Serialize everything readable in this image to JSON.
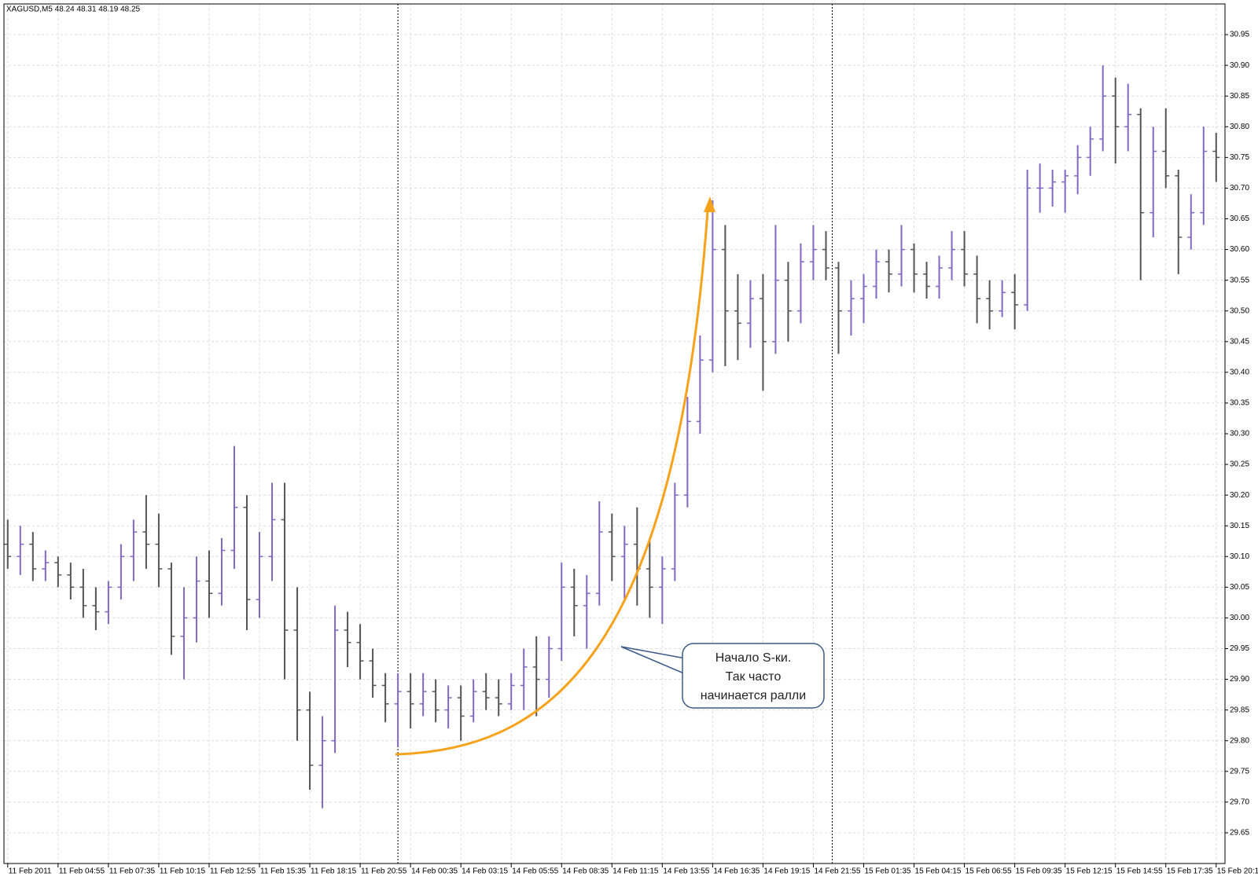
{
  "chart_data": {
    "type": "ohlc",
    "title": "XAGUSD,M5  48.24 48.31 48.19 48.25",
    "annotation": [
      "Начало S-ки.",
      "Так часто",
      "начинается ралли"
    ],
    "up_color": "#8466c4",
    "down_color": "#555555",
    "grid": true,
    "period_separators": [
      31,
      65.5
    ],
    "xlim": [
      -0.3,
      96.7
    ],
    "xticks": [
      {
        "value": 0,
        "label": "11 Feb 2011"
      },
      {
        "value": 4,
        "label": "11 Feb 04:55"
      },
      {
        "value": 8,
        "label": "11 Feb 07:35"
      },
      {
        "value": 12,
        "label": "11 Feb 10:15"
      },
      {
        "value": 16,
        "label": "11 Feb 12:55"
      },
      {
        "value": 20,
        "label": "11 Feb 15:35"
      },
      {
        "value": 24,
        "label": "11 Feb 18:15"
      },
      {
        "value": 28,
        "label": "11 Feb 20:55"
      },
      {
        "value": 32,
        "label": "14 Feb 00:35"
      },
      {
        "value": 36,
        "label": "14 Feb 03:15"
      },
      {
        "value": 40,
        "label": "14 Feb 05:55"
      },
      {
        "value": 44,
        "label": "14 Feb 08:35"
      },
      {
        "value": 48,
        "label": "14 Feb 11:15"
      },
      {
        "value": 52,
        "label": "14 Feb 13:55"
      },
      {
        "value": 56,
        "label": "14 Feb 16:35"
      },
      {
        "value": 60,
        "label": "14 Feb 19:15"
      },
      {
        "value": 64,
        "label": "14 Feb 21:55"
      },
      {
        "value": 68,
        "label": "15 Feb 01:35"
      },
      {
        "value": 72,
        "label": "15 Feb 04:15"
      },
      {
        "value": 76,
        "label": "15 Feb 06:55"
      },
      {
        "value": 80,
        "label": "15 Feb 09:35"
      },
      {
        "value": 84,
        "label": "15 Feb 12:15"
      },
      {
        "value": 88,
        "label": "15 Feb 14:55"
      },
      {
        "value": 92,
        "label": "15 Feb 17:35"
      },
      {
        "value": 96,
        "label": "15 Feb 20:15"
      }
    ],
    "ylim": [
      29.6,
      31.0
    ],
    "yticks": [
      29.65,
      {
        "value": 29.7,
        "label": "29.70"
      },
      29.75,
      {
        "value": 29.8,
        "label": "29.80"
      },
      29.85,
      {
        "value": 29.9,
        "label": "29.90"
      },
      29.95,
      {
        "value": 30,
        "label": "30.00"
      },
      30.05,
      {
        "value": 30.1,
        "label": "30.10"
      },
      30.15,
      {
        "value": 30.2,
        "label": "30.20"
      },
      30.25,
      {
        "value": 30.3,
        "label": "30.30"
      },
      30.35,
      {
        "value": 30.4,
        "label": "30.40"
      },
      30.45,
      {
        "value": 30.5,
        "label": "30.50"
      },
      30.55,
      {
        "value": 30.6,
        "label": "30.60"
      },
      30.65,
      {
        "value": 30.7,
        "label": "30.70"
      },
      30.75,
      {
        "value": 30.8,
        "label": "30.80"
      },
      30.85,
      {
        "value": 30.9,
        "label": "30.90"
      },
      30.95
    ],
    "open": [
      30.12,
      30.1,
      30.12,
      30.08,
      30.09,
      30.07,
      30.05,
      30.02,
      30.01,
      30.05,
      30.1,
      30.14,
      30.12,
      30.08,
      29.97,
      30.0,
      30.06,
      30.04,
      30.11,
      30.18,
      30.03,
      30.1,
      30.16,
      29.98,
      29.85,
      29.76,
      29.8,
      29.98,
      29.96,
      29.93,
      29.89,
      29.86,
      29.88,
      29.86,
      29.88,
      29.85,
      29.87,
      29.84,
      29.88,
      29.87,
      29.86,
      29.89,
      29.92,
      29.9,
      29.95,
      30.05,
      30.02,
      30.04,
      30.14,
      30.1,
      30.12,
      30.08,
      30.05,
      30.08,
      30.2,
      30.32,
      30.42,
      30.6,
      30.5,
      30.48,
      30.52,
      30.45,
      30.55,
      30.5,
      30.58,
      30.6,
      30.57,
      30.5,
      30.52,
      30.54,
      30.58,
      30.56,
      30.6,
      30.56,
      30.54,
      30.57,
      30.6,
      30.56,
      30.52,
      30.5,
      30.53,
      30.51,
      30.7,
      30.7,
      30.71,
      30.72,
      30.75,
      30.78,
      30.85,
      30.8,
      30.82,
      30.66,
      30.76,
      30.72,
      30.62,
      30.66,
      30.76
    ],
    "high": [
      30.16,
      30.15,
      30.14,
      30.11,
      30.1,
      30.09,
      30.08,
      30.05,
      30.06,
      30.12,
      30.16,
      30.2,
      30.17,
      30.09,
      30.05,
      30.1,
      30.11,
      30.13,
      30.28,
      30.2,
      30.14,
      30.22,
      30.22,
      30.05,
      29.88,
      29.84,
      30.02,
      30.01,
      29.99,
      29.95,
      29.91,
      29.91,
      29.91,
      29.91,
      29.9,
      29.89,
      29.89,
      29.9,
      29.91,
      29.9,
      29.91,
      29.95,
      29.97,
      29.97,
      30.09,
      30.08,
      30.07,
      30.19,
      30.17,
      30.15,
      30.18,
      30.13,
      30.1,
      30.22,
      30.36,
      30.46,
      30.68,
      30.64,
      30.56,
      30.55,
      30.56,
      30.64,
      30.58,
      30.61,
      30.64,
      30.63,
      30.58,
      30.55,
      30.56,
      30.6,
      30.6,
      30.64,
      30.61,
      30.58,
      30.59,
      30.63,
      30.63,
      30.59,
      30.55,
      30.55,
      30.56,
      30.73,
      30.74,
      30.73,
      30.73,
      30.77,
      30.8,
      30.9,
      30.88,
      30.87,
      30.83,
      30.8,
      30.83,
      30.73,
      30.69,
      30.8,
      30.79
    ],
    "low": [
      30.08,
      30.07,
      30.06,
      30.06,
      30.05,
      30.03,
      30.0,
      29.98,
      29.99,
      30.03,
      30.06,
      30.08,
      30.05,
      29.94,
      29.9,
      29.96,
      30.0,
      30.02,
      30.08,
      29.98,
      30.0,
      30.06,
      29.9,
      29.8,
      29.72,
      29.69,
      29.78,
      29.92,
      29.9,
      29.87,
      29.83,
      29.79,
      29.82,
      29.84,
      29.83,
      29.82,
      29.8,
      29.83,
      29.85,
      29.84,
      29.85,
      29.85,
      29.84,
      29.87,
      29.93,
      29.97,
      29.95,
      30.02,
      30.06,
      30.03,
      30.02,
      30.0,
      29.99,
      30.06,
      30.18,
      30.3,
      30.4,
      30.41,
      30.42,
      30.44,
      30.37,
      30.43,
      30.45,
      30.48,
      30.55,
      30.55,
      30.43,
      30.46,
      30.48,
      30.52,
      30.53,
      30.54,
      30.53,
      30.52,
      30.52,
      30.55,
      30.54,
      30.48,
      30.47,
      30.49,
      30.47,
      30.5,
      30.66,
      30.67,
      30.66,
      30.69,
      30.72,
      30.76,
      30.74,
      30.76,
      30.55,
      30.62,
      30.7,
      30.56,
      30.6,
      30.64,
      30.71
    ],
    "close": [
      30.1,
      30.12,
      30.08,
      30.09,
      30.07,
      30.05,
      30.02,
      30.01,
      30.05,
      30.1,
      30.14,
      30.12,
      30.08,
      29.97,
      30.0,
      30.06,
      30.04,
      30.11,
      30.18,
      30.03,
      30.1,
      30.16,
      29.98,
      29.85,
      29.76,
      29.8,
      29.98,
      29.96,
      29.93,
      29.89,
      29.86,
      29.88,
      29.86,
      29.88,
      29.85,
      29.87,
      29.84,
      29.88,
      29.87,
      29.86,
      29.89,
      29.92,
      29.9,
      29.95,
      30.05,
      30.02,
      30.04,
      30.14,
      30.1,
      30.12,
      30.08,
      30.05,
      30.08,
      30.2,
      30.32,
      30.42,
      30.6,
      30.5,
      30.48,
      30.52,
      30.45,
      30.55,
      30.5,
      30.58,
      30.6,
      30.57,
      30.5,
      30.52,
      30.54,
      30.58,
      30.56,
      30.6,
      30.56,
      30.54,
      30.57,
      30.6,
      30.56,
      30.52,
      30.5,
      30.53,
      30.51,
      30.7,
      30.7,
      30.71,
      30.72,
      30.75,
      30.78,
      30.85,
      30.8,
      30.82,
      30.66,
      30.76,
      30.72,
      30.62,
      30.66,
      30.76,
      30.75
    ]
  }
}
